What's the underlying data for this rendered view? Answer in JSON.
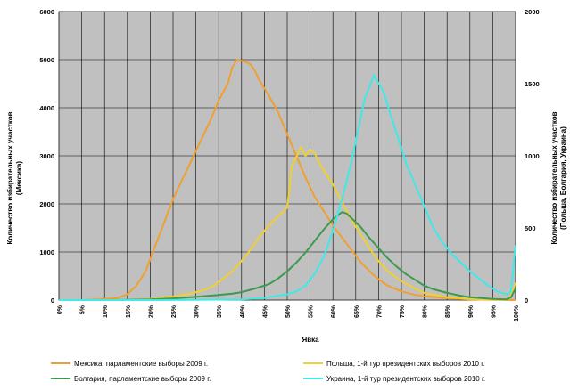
{
  "chart_data": {
    "type": "line",
    "title": "",
    "xlabel": "Явка",
    "ylabel_left": "Количество избирательных участков (Мексика)",
    "ylabel_left_lines": [
      "Количество избирательных участков",
      "(Мексика)"
    ],
    "ylabel_right": "Количество избирательных участков (Польша, Болгария, Украина)",
    "ylabel_right_lines": [
      "Количество избирательных участков",
      "(Польша, Болгария, Украина)"
    ],
    "x_unit": "percent",
    "x_ticks": [
      "0%",
      "5%",
      "10%",
      "15%",
      "20%",
      "25%",
      "30%",
      "35%",
      "40%",
      "45%",
      "50%",
      "55%",
      "60%",
      "65%",
      "70%",
      "75%",
      "80%",
      "85%",
      "90%",
      "95%",
      "100%"
    ],
    "ylim_left": [
      0,
      6000
    ],
    "y_ticks_left": [
      "0",
      "1000",
      "2000",
      "3000",
      "4000",
      "5000",
      "6000"
    ],
    "ylim_right": [
      0,
      2000
    ],
    "y_ticks_right": [
      "0",
      "500",
      "1000",
      "1500",
      "2000"
    ],
    "grid": true,
    "plot_background": "#c0c0c0",
    "legend_position": "bottom",
    "series": [
      {
        "name": "Мексика, парламентские выборы 2009 г.",
        "color": "#f0a030",
        "axis": "left",
        "points": [
          [
            0,
            0
          ],
          [
            5,
            0
          ],
          [
            10,
            20
          ],
          [
            13,
            50
          ],
          [
            15,
            120
          ],
          [
            17,
            300
          ],
          [
            19,
            600
          ],
          [
            21,
            1100
          ],
          [
            23,
            1600
          ],
          [
            25,
            2100
          ],
          [
            27,
            2500
          ],
          [
            29,
            2900
          ],
          [
            31,
            3300
          ],
          [
            33,
            3700
          ],
          [
            35,
            4150
          ],
          [
            37,
            4500
          ],
          [
            38,
            4850
          ],
          [
            39,
            5000
          ],
          [
            40,
            4980
          ],
          [
            41,
            4950
          ],
          [
            42,
            4900
          ],
          [
            43,
            4750
          ],
          [
            44,
            4550
          ],
          [
            46,
            4250
          ],
          [
            48,
            3900
          ],
          [
            50,
            3450
          ],
          [
            52,
            3000
          ],
          [
            54,
            2550
          ],
          [
            56,
            2150
          ],
          [
            58,
            1850
          ],
          [
            60,
            1550
          ],
          [
            62,
            1300
          ],
          [
            64,
            1050
          ],
          [
            66,
            800
          ],
          [
            68,
            600
          ],
          [
            70,
            430
          ],
          [
            72,
            300
          ],
          [
            75,
            180
          ],
          [
            78,
            110
          ],
          [
            80,
            80
          ],
          [
            85,
            40
          ],
          [
            90,
            15
          ],
          [
            95,
            5
          ],
          [
            100,
            0
          ]
        ]
      },
      {
        "name": "Польша, 1-й тур президентских выборов 2010 г.",
        "color": "#f0d030",
        "axis": "right",
        "points": [
          [
            0,
            0
          ],
          [
            10,
            0
          ],
          [
            15,
            2
          ],
          [
            20,
            8
          ],
          [
            25,
            25
          ],
          [
            28,
            40
          ],
          [
            30,
            55
          ],
          [
            32,
            70
          ],
          [
            34,
            100
          ],
          [
            36,
            150
          ],
          [
            38,
            200
          ],
          [
            40,
            270
          ],
          [
            42,
            350
          ],
          [
            44,
            440
          ],
          [
            46,
            520
          ],
          [
            48,
            580
          ],
          [
            50,
            640
          ],
          [
            51,
            930
          ],
          [
            52,
            990
          ],
          [
            53,
            1060
          ],
          [
            54,
            1000
          ],
          [
            55,
            1040
          ],
          [
            56,
            1020
          ],
          [
            57,
            950
          ],
          [
            58,
            900
          ],
          [
            60,
            800
          ],
          [
            62,
            680
          ],
          [
            64,
            560
          ],
          [
            66,
            460
          ],
          [
            68,
            360
          ],
          [
            70,
            270
          ],
          [
            72,
            200
          ],
          [
            75,
            130
          ],
          [
            78,
            80
          ],
          [
            80,
            50
          ],
          [
            85,
            20
          ],
          [
            90,
            8
          ],
          [
            95,
            3
          ],
          [
            98,
            2
          ],
          [
            99,
            30
          ],
          [
            100,
            120
          ]
        ]
      },
      {
        "name": "Болгария, парламентские выборы 2009 г.",
        "color": "#3c9a50",
        "axis": "right",
        "points": [
          [
            0,
            0
          ],
          [
            10,
            0
          ],
          [
            15,
            2
          ],
          [
            20,
            5
          ],
          [
            25,
            12
          ],
          [
            30,
            22
          ],
          [
            35,
            35
          ],
          [
            38,
            45
          ],
          [
            40,
            55
          ],
          [
            43,
            80
          ],
          [
            46,
            110
          ],
          [
            48,
            150
          ],
          [
            50,
            200
          ],
          [
            52,
            260
          ],
          [
            54,
            330
          ],
          [
            56,
            410
          ],
          [
            58,
            490
          ],
          [
            60,
            560
          ],
          [
            62,
            610
          ],
          [
            63,
            600
          ],
          [
            64,
            570
          ],
          [
            66,
            510
          ],
          [
            68,
            430
          ],
          [
            70,
            360
          ],
          [
            72,
            290
          ],
          [
            74,
            230
          ],
          [
            76,
            180
          ],
          [
            78,
            140
          ],
          [
            80,
            100
          ],
          [
            82,
            75
          ],
          [
            85,
            50
          ],
          [
            88,
            30
          ],
          [
            90,
            20
          ],
          [
            95,
            8
          ],
          [
            98,
            5
          ],
          [
            99,
            20
          ],
          [
            100,
            80
          ]
        ]
      },
      {
        "name": "Украина, 1-й тур президентских выборов 2010 г.",
        "color": "#40e8e8",
        "axis": "right",
        "points": [
          [
            0,
            0
          ],
          [
            20,
            0
          ],
          [
            30,
            2
          ],
          [
            40,
            5
          ],
          [
            45,
            15
          ],
          [
            50,
            40
          ],
          [
            52,
            60
          ],
          [
            54,
            100
          ],
          [
            56,
            180
          ],
          [
            58,
            300
          ],
          [
            60,
            480
          ],
          [
            62,
            700
          ],
          [
            64,
            950
          ],
          [
            66,
            1250
          ],
          [
            67,
            1400
          ],
          [
            68,
            1480
          ],
          [
            69,
            1560
          ],
          [
            70,
            1500
          ],
          [
            71,
            1450
          ],
          [
            72,
            1350
          ],
          [
            74,
            1150
          ],
          [
            76,
            950
          ],
          [
            78,
            800
          ],
          [
            80,
            650
          ],
          [
            82,
            500
          ],
          [
            84,
            400
          ],
          [
            86,
            320
          ],
          [
            88,
            260
          ],
          [
            90,
            200
          ],
          [
            92,
            150
          ],
          [
            94,
            100
          ],
          [
            96,
            60
          ],
          [
            98,
            40
          ],
          [
            99,
            60
          ],
          [
            100,
            380
          ]
        ]
      }
    ]
  }
}
